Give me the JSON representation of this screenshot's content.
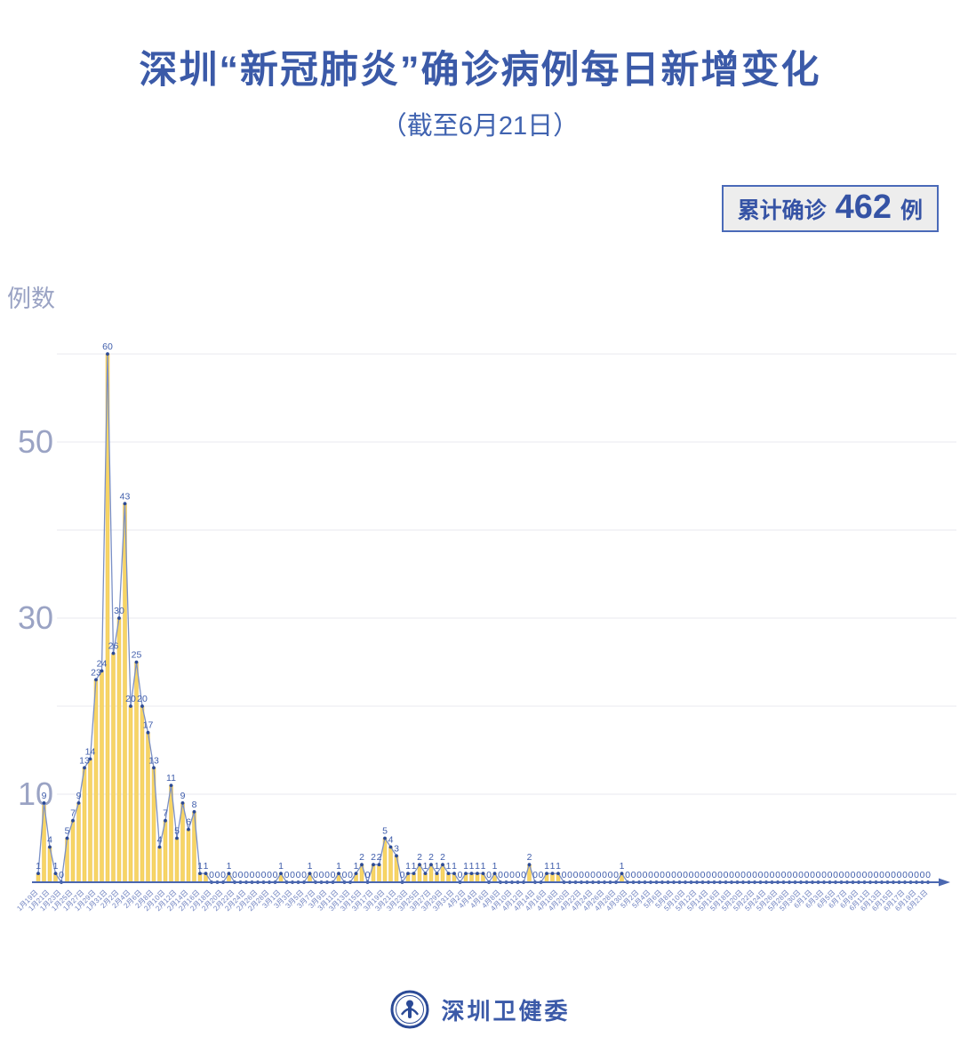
{
  "title": "深圳“新冠肺炎”确诊病例每日新增变化",
  "subtitle": "（截至6月21日）",
  "badge": {
    "prefix": "累计确诊",
    "value": "462",
    "suffix": "例"
  },
  "footer": {
    "org": "深圳卫健委",
    "logo": "shenzhen-health-commission-emblem"
  },
  "colors": {
    "title_blue": "#3b5aa8",
    "bar_yellow": "#f7d565",
    "bar_edge": "#e9bf55",
    "line_blue": "#7b90c6",
    "marker_blue": "#2b4a96",
    "value_label_blue": "#3f5dab",
    "axis_blue": "#4a67b0",
    "date_label_blue": "#6f82c0",
    "y_tick_gray": "#9aa3c4",
    "grid_gray": "#e8e9ef",
    "badge_bg": "#ededed",
    "badge_border": "#4a6ab8"
  },
  "chart_data": {
    "type": "bar",
    "title": "深圳“新冠肺炎”确诊病例每日新增变化",
    "subtitle": "（截至6月21日）",
    "ylabel": "例数",
    "xlabel": "",
    "ylim": [
      0,
      62
    ],
    "y_ticks": [
      10,
      30,
      50
    ],
    "gridlines": [
      10,
      20,
      30,
      40,
      50,
      60
    ],
    "legend_position": "none",
    "grid": true,
    "x_label_every": 2,
    "x_start": "1月19日",
    "x_end": "6月21日",
    "total": 462,
    "categories": [
      "1月19日",
      "1月20日",
      "1月21日",
      "1月22日",
      "1月23日",
      "1月24日",
      "1月25日",
      "1月26日",
      "1月27日",
      "1月28日",
      "1月29日",
      "1月30日",
      "1月31日",
      "2月1日",
      "2月2日",
      "2月3日",
      "2月4日",
      "2月5日",
      "2月6日",
      "2月7日",
      "2月8日",
      "2月9日",
      "2月10日",
      "2月11日",
      "2月12日",
      "2月13日",
      "2月14日",
      "2月15日",
      "2月16日",
      "2月17日",
      "2月18日",
      "2月19日",
      "2月20日",
      "2月21日",
      "2月22日",
      "2月23日",
      "2月24日",
      "2月25日",
      "2月26日",
      "2月27日",
      "2月28日",
      "2月29日",
      "3月1日",
      "3月2日",
      "3月3日",
      "3月4日",
      "3月5日",
      "3月6日",
      "3月7日",
      "3月8日",
      "3月9日",
      "3月10日",
      "3月11日",
      "3月12日",
      "3月13日",
      "3月14日",
      "3月15日",
      "3月16日",
      "3月17日",
      "3月18日",
      "3月19日",
      "3月20日",
      "3月21日",
      "3月22日",
      "3月23日",
      "3月24日",
      "3月25日",
      "3月26日",
      "3月27日",
      "3月28日",
      "3月29日",
      "3月30日",
      "3月31日",
      "4月1日",
      "4月2日",
      "4月3日",
      "4月4日",
      "4月5日",
      "4月6日",
      "4月7日",
      "4月8日",
      "4月9日",
      "4月10日",
      "4月11日",
      "4月12日",
      "4月13日",
      "4月14日",
      "4月15日",
      "4月16日",
      "4月17日",
      "4月18日",
      "4月19日",
      "4月20日",
      "4月21日",
      "4月22日",
      "4月23日",
      "4月24日",
      "4月25日",
      "4月26日",
      "4月27日",
      "4月28日",
      "4月29日",
      "4月30日",
      "5月1日",
      "5月2日",
      "5月3日",
      "5月4日",
      "5月5日",
      "5月6日",
      "5月7日",
      "5月8日",
      "5月9日",
      "5月10日",
      "5月11日",
      "5月12日",
      "5月13日",
      "5月14日",
      "5月15日",
      "5月16日",
      "5月17日",
      "5月18日",
      "5月19日",
      "5月20日",
      "5月21日",
      "5月22日",
      "5月23日",
      "5月24日",
      "5月25日",
      "5月26日",
      "5月27日",
      "5月28日",
      "5月29日",
      "5月30日",
      "5月31日",
      "6月1日",
      "6月2日",
      "6月3日",
      "6月4日",
      "6月5日",
      "6月6日",
      "6月7日",
      "6月8日",
      "6月9日",
      "6月10日",
      "6月11日",
      "6月12日",
      "6月13日",
      "6月14日",
      "6月15日",
      "6月16日",
      "6月17日",
      "6月18日",
      "6月19日",
      "6月20日",
      "6月21日"
    ],
    "values": [
      1,
      9,
      4,
      1,
      0,
      5,
      7,
      9,
      13,
      14,
      23,
      24,
      60,
      26,
      30,
      43,
      20,
      25,
      20,
      17,
      13,
      4,
      7,
      11,
      5,
      9,
      6,
      8,
      1,
      1,
      0,
      0,
      0,
      1,
      0,
      0,
      0,
      0,
      0,
      0,
      0,
      0,
      1,
      0,
      0,
      0,
      0,
      1,
      0,
      0,
      0,
      0,
      1,
      0,
      0,
      1,
      2,
      0,
      2,
      2,
      5,
      4,
      3,
      0,
      1,
      1,
      2,
      1,
      2,
      1,
      2,
      1,
      1,
      0,
      1,
      1,
      1,
      1,
      0,
      1,
      0,
      0,
      0,
      0,
      0,
      2,
      0,
      0,
      1,
      1,
      1,
      0,
      0,
      0,
      0,
      0,
      0,
      0,
      0,
      0,
      0,
      1,
      0,
      0,
      0,
      0,
      0,
      0,
      0,
      0,
      0,
      0,
      0,
      0,
      0,
      0,
      0,
      0,
      0,
      0,
      0,
      0,
      0,
      0,
      0,
      0,
      0,
      0,
      0,
      0,
      0,
      0,
      0,
      0,
      0,
      0,
      0,
      0,
      0,
      0,
      0,
      0,
      0,
      0,
      0,
      0,
      0,
      0,
      0,
      0,
      0,
      0,
      0,
      0,
      0
    ]
  }
}
